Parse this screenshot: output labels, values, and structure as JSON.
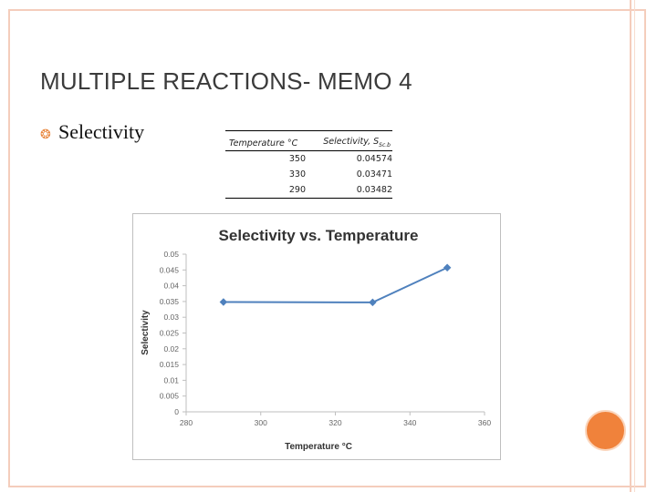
{
  "slide": {
    "title": "MULTIPLE REACTIONS- MEMO 4",
    "bullet_label": "Selectivity"
  },
  "table": {
    "headers": [
      "Temperature °C",
      "Selectivity, S"
    ],
    "header_subscript": "Sc.b",
    "rows": [
      [
        "350",
        "0.04574"
      ],
      [
        "330",
        "0.03471"
      ],
      [
        "290",
        "0.03482"
      ]
    ]
  },
  "colors": {
    "frame": "#f4cdbc",
    "accent": "#f0823b",
    "series": "#4f81bd"
  },
  "chart_data": {
    "type": "line",
    "title": "Selectivity vs. Temperature",
    "xlabel": "Temperature °C",
    "ylabel": "Selectivity",
    "xlim": [
      280,
      360
    ],
    "ylim": [
      0,
      0.05
    ],
    "x_ticks": [
      "280",
      "300",
      "320",
      "340",
      "360"
    ],
    "y_ticks": [
      "0",
      "0.005",
      "0.01",
      "0.015",
      "0.02",
      "0.025",
      "0.03",
      "0.035",
      "0.04",
      "0.045",
      "0.05"
    ],
    "x_tick_values": [
      280,
      300,
      320,
      340,
      360
    ],
    "y_tick_values": [
      0,
      0.005,
      0.01,
      0.015,
      0.02,
      0.025,
      0.03,
      0.035,
      0.04,
      0.045,
      0.05
    ],
    "series": [
      {
        "x": [
          290,
          330,
          350
        ],
        "y": [
          0.03482,
          0.03471,
          0.04574
        ]
      }
    ],
    "grid": false,
    "legend": "none"
  }
}
